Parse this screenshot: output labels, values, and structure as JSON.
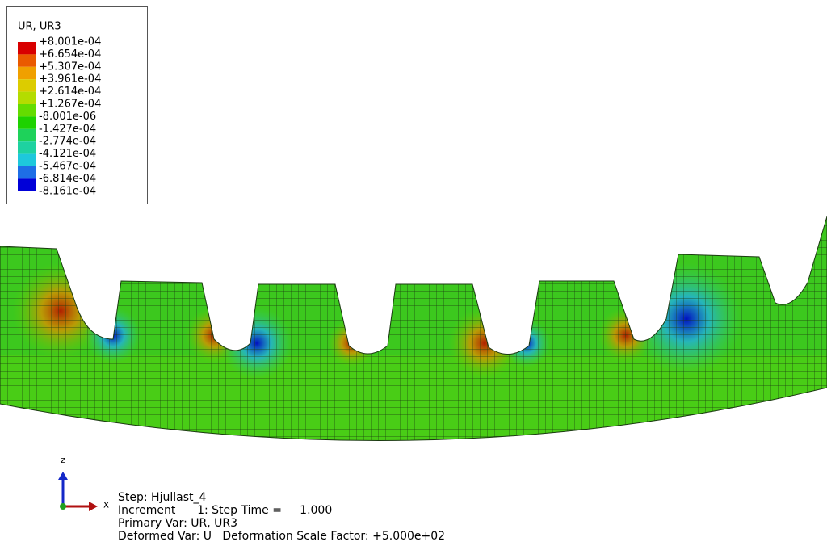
{
  "legend": {
    "title": "UR, UR3",
    "levels": [
      "+8.001e-04",
      "+6.654e-04",
      "+5.307e-04",
      "+3.961e-04",
      "+2.614e-04",
      "+1.267e-04",
      "-8.001e-06",
      "-1.427e-04",
      "-2.774e-04",
      "-4.121e-04",
      "-5.467e-04",
      "-6.814e-04",
      "-8.161e-04"
    ],
    "colors": [
      "#d80000",
      "#ea5a00",
      "#f0a000",
      "#dccc00",
      "#b4dc00",
      "#64dc00",
      "#1ed200",
      "#1ed25a",
      "#1ed2a0",
      "#1ec8dc",
      "#1e6ee6",
      "#0000d8"
    ]
  },
  "triad": {
    "z": "z",
    "x": "x"
  },
  "status": {
    "lines": [
      "Step: Hjullast_4",
      "Increment      1: Step Time =     1.000",
      "Primary Var: UR, UR3",
      "Deformed Var: U   Deformation Scale Factor: +5.000e+02"
    ]
  }
}
